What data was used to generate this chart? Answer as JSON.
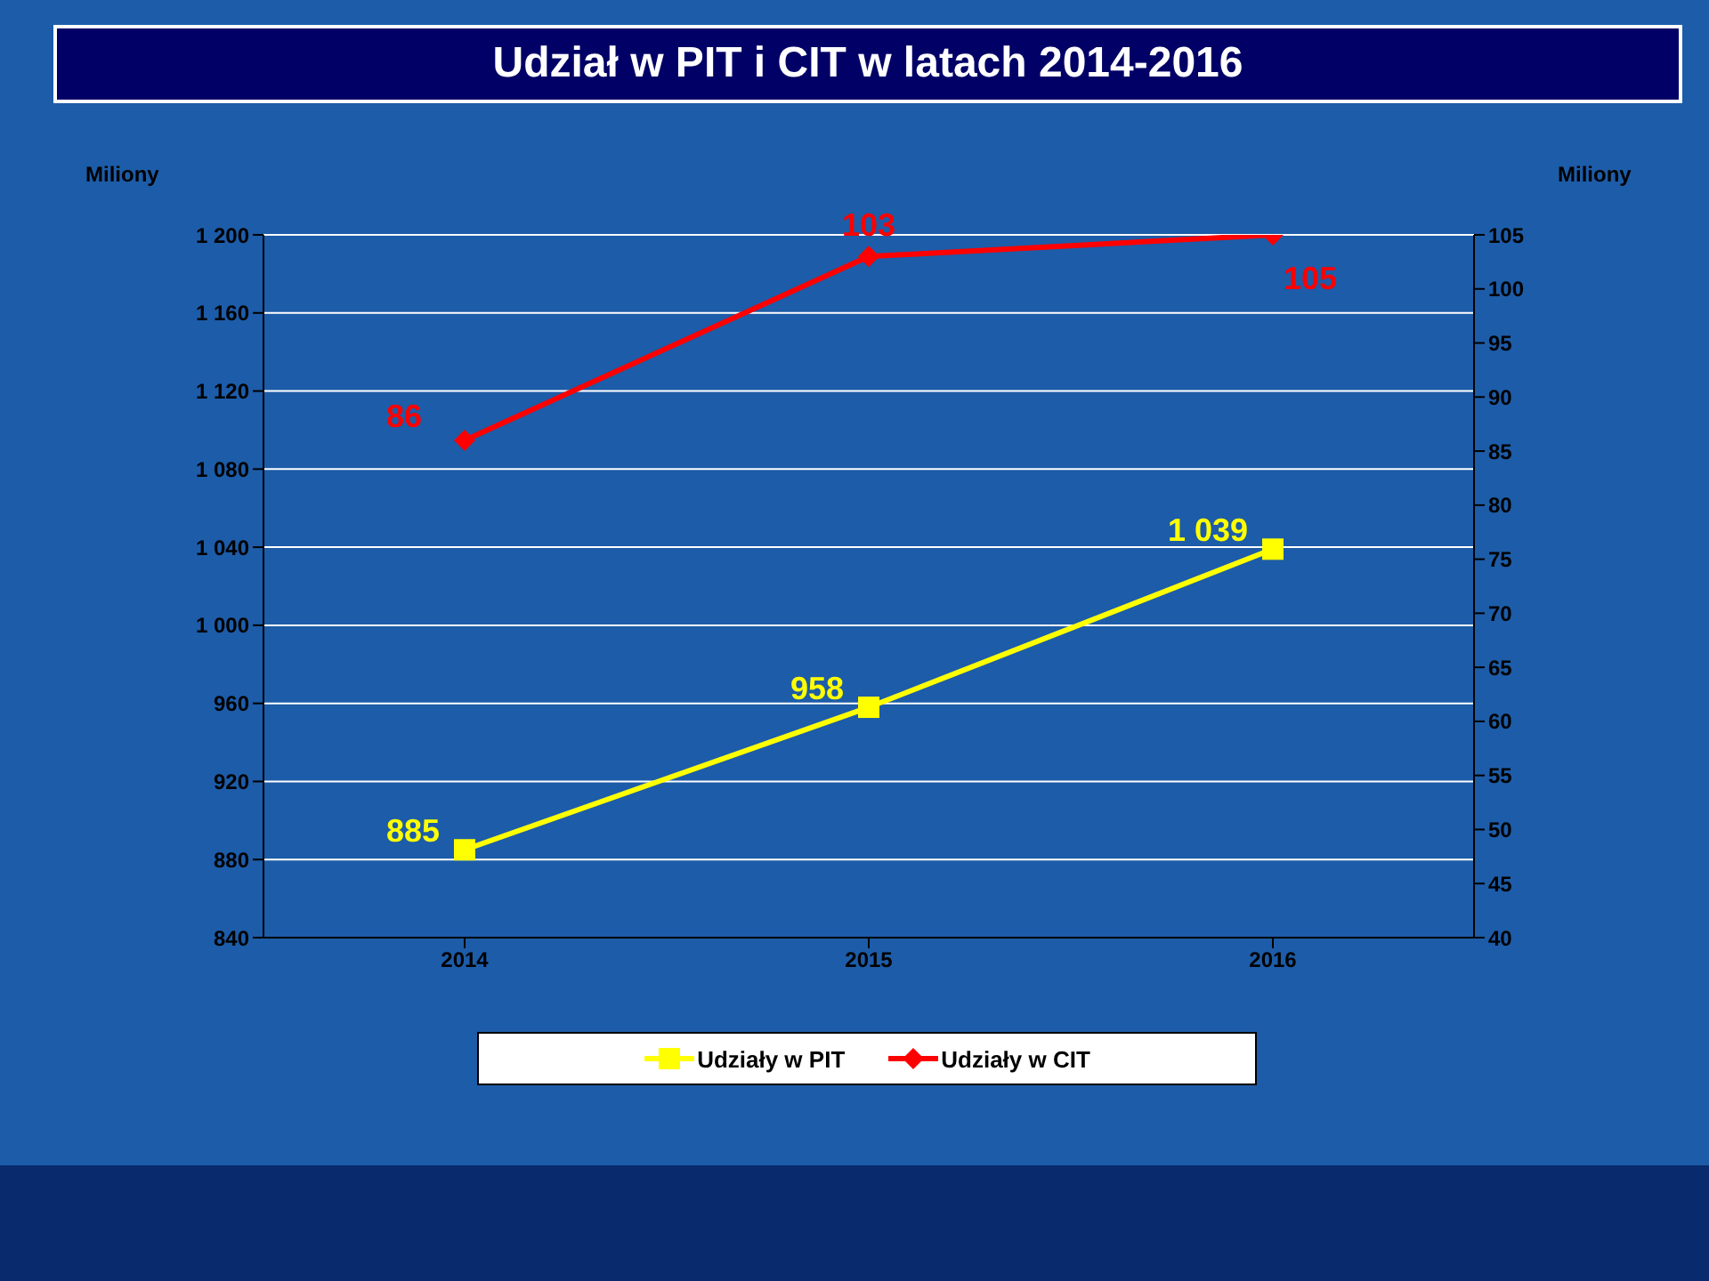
{
  "chart_data": {
    "type": "line",
    "title": "Udział w PIT i CIT w latach 2014-2016",
    "ylabel": "Miliony",
    "y2label": "Miliony",
    "categories": [
      "2014",
      "2015",
      "2016"
    ],
    "series": [
      {
        "name": "Udziały w PIT",
        "color": "#ffff00",
        "values": [
          885,
          958,
          1039
        ],
        "value_labels": [
          "885",
          "958",
          "1 039"
        ],
        "marker": "square",
        "axis": "y"
      },
      {
        "name": "Udziały w CIT",
        "color": "#ff0000",
        "values": [
          86,
          103,
          105
        ],
        "value_labels": [
          "86",
          "103",
          "105"
        ],
        "marker": "diamond",
        "axis": "y2"
      }
    ],
    "ylim": [
      840,
      1200
    ],
    "yticks": [
      840,
      880,
      920,
      960,
      {
        "value": 1000,
        "label": "1 000"
      },
      {
        "value": 1040,
        "label": "1 040"
      },
      {
        "value": 1080,
        "label": "1 080"
      },
      {
        "value": 1120,
        "label": "1 120"
      },
      {
        "value": 1160,
        "label": "1 160"
      },
      {
        "value": 1200,
        "label": "1 200"
      }
    ],
    "y2lim": [
      40,
      105
    ],
    "y2ticks": [
      40,
      45,
      50,
      55,
      60,
      65,
      70,
      75,
      80,
      85,
      90,
      95,
      100,
      105
    ],
    "grid": "y",
    "legend": "bottom",
    "line_style": "solid"
  }
}
